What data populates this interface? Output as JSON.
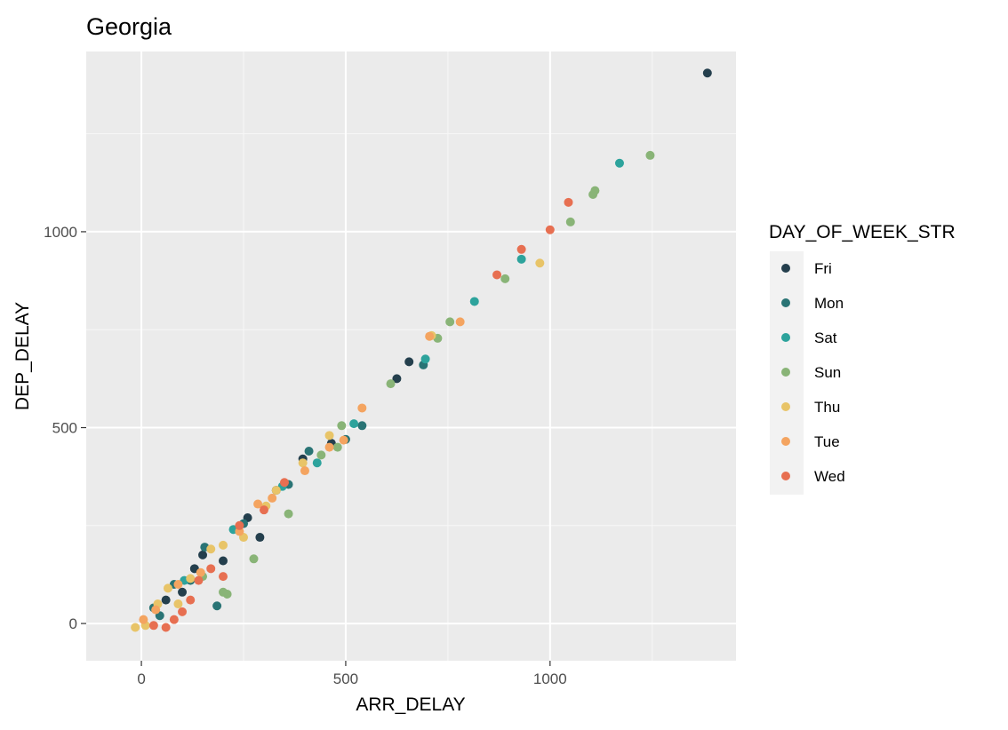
{
  "chart_data": {
    "type": "scatter",
    "title": "Georgia",
    "xlabel": "ARR_DELAY",
    "ylabel": "DEP_DELAY",
    "xlim": [
      -135,
      1455
    ],
    "ylim": [
      -95,
      1460
    ],
    "xticks": [
      0,
      500,
      1000
    ],
    "yticks": [
      0,
      500,
      1000
    ],
    "grid": true,
    "legend": {
      "title": "DAY_OF_WEEK_STR",
      "position": "right"
    },
    "series": [
      {
        "name": "Fri",
        "color": "#243f4d",
        "points": [
          [
            1385,
            1405
          ],
          [
            655,
            668
          ],
          [
            625,
            625
          ],
          [
            465,
            460
          ],
          [
            395,
            420
          ],
          [
            290,
            220
          ],
          [
            200,
            160
          ],
          [
            260,
            270
          ],
          [
            150,
            175
          ],
          [
            130,
            140
          ],
          [
            330,
            340
          ],
          [
            60,
            60
          ],
          [
            100,
            80
          ]
        ]
      },
      {
        "name": "Mon",
        "color": "#2a7475",
        "points": [
          [
            540,
            505
          ],
          [
            690,
            660
          ],
          [
            500,
            470
          ],
          [
            410,
            440
          ],
          [
            360,
            355
          ],
          [
            185,
            45
          ],
          [
            250,
            255
          ],
          [
            155,
            195
          ],
          [
            80,
            100
          ],
          [
            30,
            40
          ],
          [
            120,
            110
          ],
          [
            45,
            20
          ]
        ]
      },
      {
        "name": "Sat",
        "color": "#2da39c",
        "points": [
          [
            1170,
            1175
          ],
          [
            930,
            930
          ],
          [
            815,
            822
          ],
          [
            695,
            675
          ],
          [
            520,
            510
          ],
          [
            430,
            410
          ],
          [
            345,
            350
          ],
          [
            225,
            240
          ],
          [
            105,
            110
          ]
        ]
      },
      {
        "name": "Sun",
        "color": "#89b477",
        "points": [
          [
            1245,
            1195
          ],
          [
            1110,
            1105
          ],
          [
            1105,
            1095
          ],
          [
            1050,
            1025
          ],
          [
            890,
            880
          ],
          [
            755,
            770
          ],
          [
            725,
            728
          ],
          [
            610,
            612
          ],
          [
            490,
            505
          ],
          [
            480,
            450
          ],
          [
            440,
            430
          ],
          [
            360,
            280
          ],
          [
            275,
            165
          ],
          [
            210,
            75
          ],
          [
            200,
            80
          ],
          [
            150,
            120
          ]
        ]
      },
      {
        "name": "Thu",
        "color": "#e8c468",
        "points": [
          [
            975,
            920
          ],
          [
            710,
            735
          ],
          [
            460,
            480
          ],
          [
            395,
            410
          ],
          [
            330,
            340
          ],
          [
            305,
            300
          ],
          [
            250,
            220
          ],
          [
            200,
            200
          ],
          [
            170,
            190
          ],
          [
            120,
            115
          ],
          [
            65,
            90
          ],
          [
            40,
            50
          ],
          [
            10,
            -5
          ],
          [
            -15,
            -10
          ],
          [
            90,
            50
          ]
        ]
      },
      {
        "name": "Tue",
        "color": "#f4a460",
        "points": [
          [
            780,
            770
          ],
          [
            705,
            733
          ],
          [
            540,
            550
          ],
          [
            495,
            468
          ],
          [
            460,
            450
          ],
          [
            400,
            390
          ],
          [
            320,
            320
          ],
          [
            285,
            305
          ],
          [
            240,
            235
          ],
          [
            145,
            130
          ],
          [
            90,
            100
          ],
          [
            35,
            35
          ],
          [
            5,
            10
          ]
        ]
      },
      {
        "name": "Wed",
        "color": "#e76f51",
        "points": [
          [
            1045,
            1075
          ],
          [
            1000,
            1005
          ],
          [
            930,
            955
          ],
          [
            870,
            890
          ],
          [
            350,
            360
          ],
          [
            300,
            290
          ],
          [
            240,
            250
          ],
          [
            200,
            120
          ],
          [
            170,
            140
          ],
          [
            140,
            110
          ],
          [
            120,
            60
          ],
          [
            100,
            30
          ],
          [
            80,
            10
          ],
          [
            60,
            -10
          ],
          [
            30,
            -5
          ]
        ]
      }
    ]
  }
}
